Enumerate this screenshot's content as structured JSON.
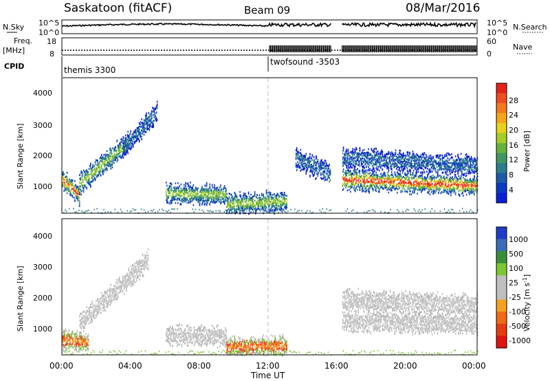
{
  "header": {
    "station": "Saskatoon (fitACF)",
    "beam": "Beam 09",
    "date": "08/Mar/2016"
  },
  "ops_panel": {
    "nsky_label": "N.Sky",
    "nsky_ticks": [
      "10^5",
      "10^0"
    ],
    "nsearch_label": "N.Search",
    "nsearch_ticks": [
      "10^5",
      "10^0"
    ],
    "freq_label": "Freq.",
    "freq_unit": "[MHz]",
    "freq_ticks": [
      "18",
      "8"
    ],
    "nave_label": "Nave",
    "nave_ticks": [
      "60",
      "0"
    ],
    "cpid_label": "CPID",
    "cpid_segments": [
      "themis 3300",
      "twofsound -3503"
    ]
  },
  "colorbars": {
    "power": {
      "label": "Power [dB]",
      "ticks": [
        "28",
        "24",
        "20",
        "16",
        "12",
        "8",
        "4"
      ],
      "colors": [
        "#0a1fd6",
        "#0a38c4",
        "#1a5ca8",
        "#2b7d8a",
        "#3f9660",
        "#66b33c",
        "#a6cc26",
        "#e6d21a",
        "#f5a51a",
        "#f47a1e",
        "#ef4d20",
        "#e62218"
      ]
    },
    "velocity": {
      "label": "Velocity [m s",
      "label_sup": "-1",
      "label_end": "]",
      "ticks": [
        "1000",
        "500",
        "100",
        "25",
        "-25",
        "-100",
        "-500",
        "-1000"
      ],
      "colors": [
        "#1f3cc8",
        "#3a6db6",
        "#3a8f3a",
        "#7dc832",
        "#bfbfbf",
        "#bfbfbf",
        "#f5a020",
        "#f06a18",
        "#e63c12",
        "#e01414"
      ]
    }
  },
  "axes": {
    "y_label": "Slant Range [km]",
    "y_ticks": [
      "4000",
      "3000",
      "2000",
      "1000"
    ],
    "x_label": "Time UT",
    "x_ticks": [
      "00:00",
      "04:00",
      "08:00",
      "12:00",
      "16:00",
      "20:00",
      "00:00"
    ]
  },
  "chart_data": {
    "type": "heatmap",
    "x_range_hours": [
      0,
      24
    ],
    "y_range_km": [
      180,
      4600
    ],
    "data_gap_hours": [
      15.6,
      16.2
    ],
    "cpid_change_hour": 12.0,
    "power_echo_bands": [
      {
        "t0": 0.0,
        "t1": 1.0,
        "r0": 1300,
        "r1": 800,
        "level": "high"
      },
      {
        "t0": 1.0,
        "t1": 3.8,
        "r0": 1150,
        "r1": 2500,
        "level": "medium"
      },
      {
        "t0": 3.5,
        "t1": 5.5,
        "r0": 2300,
        "r1": 3500,
        "level": "low"
      },
      {
        "t0": 6.0,
        "t1": 9.5,
        "r0": 850,
        "r1": 800,
        "level": "medium"
      },
      {
        "t0": 9.5,
        "t1": 13.0,
        "r0": 500,
        "r1": 600,
        "level": "medium"
      },
      {
        "t0": 13.5,
        "t1": 15.5,
        "r0": 2000,
        "r1": 1500,
        "level": "low"
      },
      {
        "t0": 16.2,
        "t1": 24.0,
        "r0": 1300,
        "r1": 1100,
        "level": "high"
      },
      {
        "t0": 16.2,
        "t1": 24.0,
        "r0": 2000,
        "r1": 1750,
        "level": "low"
      }
    ],
    "velocity_echo_bands": [
      {
        "t0": 0.0,
        "t1": 1.5,
        "r0": 700,
        "r1": 600,
        "class": "negative"
      },
      {
        "t0": 1.0,
        "t1": 5.0,
        "r0": 1200,
        "r1": 3300,
        "class": "near-zero"
      },
      {
        "t0": 6.0,
        "t1": 9.5,
        "r0": 850,
        "r1": 800,
        "class": "near-zero"
      },
      {
        "t0": 9.5,
        "t1": 13.0,
        "r0": 450,
        "r1": 500,
        "class": "negative"
      },
      {
        "t0": 16.2,
        "t1": 24.0,
        "r0": 1300,
        "r1": 1200,
        "class": "near-zero"
      },
      {
        "t0": 16.2,
        "t1": 24.0,
        "r0": 2000,
        "r1": 1800,
        "class": "near-zero"
      }
    ]
  }
}
